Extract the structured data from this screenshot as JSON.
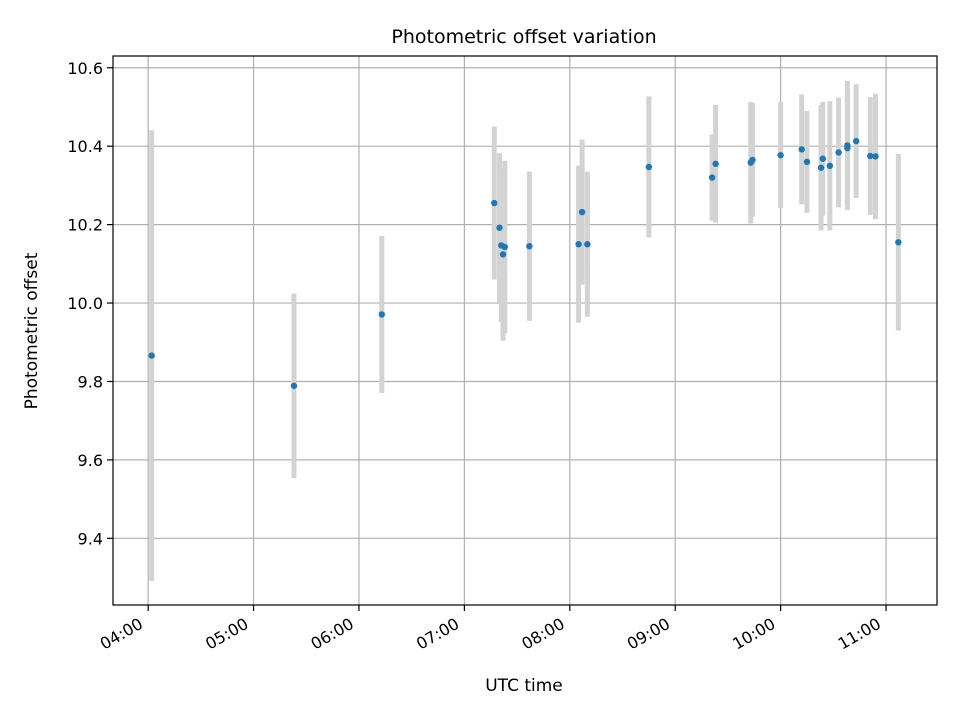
{
  "chart_data": {
    "type": "scatter",
    "title": "Photometric offset variation",
    "xlabel": "UTC time",
    "ylabel": "Photometric offset",
    "x_ticks": [
      "04:00",
      "05:00",
      "06:00",
      "07:00",
      "08:00",
      "09:00",
      "10:00",
      "11:00"
    ],
    "y_ticks": [
      "9.4",
      "9.6",
      "9.8",
      "10.0",
      "10.2",
      "10.4",
      "10.6"
    ],
    "xlim": [
      "03:40",
      "11:29"
    ],
    "ylim": [
      9.23,
      10.63
    ],
    "grid": true,
    "colors": {
      "point": "#1f77b4",
      "errorbar": "#d3d3d3",
      "grid": "#b0b0b0"
    },
    "points": [
      {
        "x": "04:02",
        "y": 9.866,
        "err": 0.575
      },
      {
        "x": "05:23",
        "y": 9.789,
        "err": 0.235
      },
      {
        "x": "06:13",
        "y": 9.971,
        "err": 0.2
      },
      {
        "x": "07:17",
        "y": 10.255,
        "err": 0.195
      },
      {
        "x": "07:20",
        "y": 10.192,
        "err": 0.19
      },
      {
        "x": "07:21",
        "y": 10.147,
        "err": 0.195
      },
      {
        "x": "07:22",
        "y": 10.124,
        "err": 0.22
      },
      {
        "x": "07:23",
        "y": 10.143,
        "err": 0.22
      },
      {
        "x": "07:37",
        "y": 10.145,
        "err": 0.19
      },
      {
        "x": "08:05",
        "y": 10.15,
        "err": 0.2
      },
      {
        "x": "08:07",
        "y": 10.232,
        "err": 0.185
      },
      {
        "x": "08:10",
        "y": 10.15,
        "err": 0.185
      },
      {
        "x": "08:45",
        "y": 10.347,
        "err": 0.18
      },
      {
        "x": "09:21",
        "y": 10.32,
        "err": 0.11
      },
      {
        "x": "09:23",
        "y": 10.355,
        "err": 0.15
      },
      {
        "x": "09:43",
        "y": 10.358,
        "err": 0.155
      },
      {
        "x": "09:44",
        "y": 10.365,
        "err": 0.145
      },
      {
        "x": "10:00",
        "y": 10.377,
        "err": 0.135
      },
      {
        "x": "10:12",
        "y": 10.392,
        "err": 0.14
      },
      {
        "x": "10:15",
        "y": 10.36,
        "err": 0.13
      },
      {
        "x": "10:23",
        "y": 10.345,
        "err": 0.16
      },
      {
        "x": "10:24",
        "y": 10.368,
        "err": 0.145
      },
      {
        "x": "10:28",
        "y": 10.35,
        "err": 0.165
      },
      {
        "x": "10:33",
        "y": 10.384,
        "err": 0.14
      },
      {
        "x": "10:38",
        "y": 10.395,
        "err": 0.155
      },
      {
        "x": "10:38",
        "y": 10.402,
        "err": 0.165
      },
      {
        "x": "10:43",
        "y": 10.413,
        "err": 0.145
      },
      {
        "x": "10:51",
        "y": 10.375,
        "err": 0.15
      },
      {
        "x": "10:54",
        "y": 10.374,
        "err": 0.16
      },
      {
        "x": "11:07",
        "y": 10.155,
        "err": 0.225
      }
    ]
  }
}
